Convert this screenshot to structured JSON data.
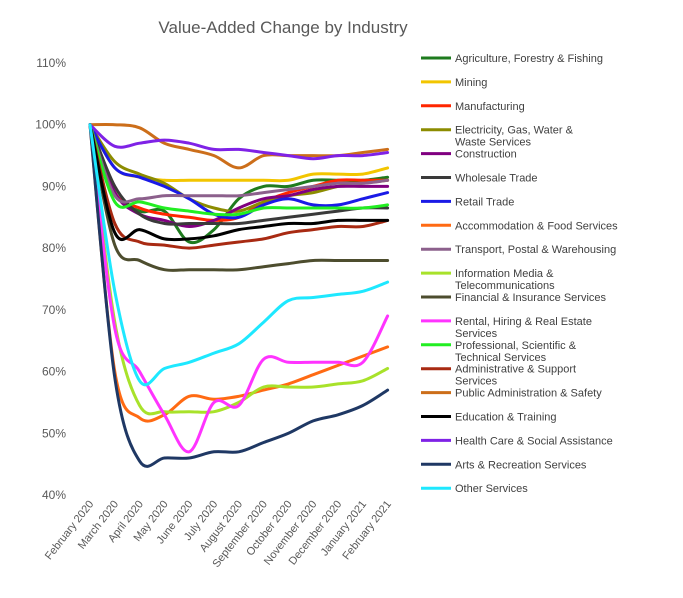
{
  "chart_data": {
    "type": "line",
    "title": "Value-Added Change by Industry",
    "xlabel": "",
    "ylabel": "",
    "ylim": [
      0.4,
      1.1
    ],
    "yticks": [
      "40%",
      "50%",
      "60%",
      "70%",
      "80%",
      "90%",
      "100%",
      "110%"
    ],
    "grid": false,
    "legend": "right",
    "x": [
      "February 2020",
      "March 2020",
      "April 2020",
      "May 2020",
      "June 2020",
      "July 2020",
      "August 2020",
      "September 2020",
      "October 2020",
      "November 2020",
      "December 2020",
      "January 2021",
      "February 2021"
    ],
    "series": [
      {
        "name": "Agriculture, Forestry & Fishing",
        "color": "#1e7b1e",
        "values": [
          1.0,
          0.89,
          0.86,
          0.86,
          0.81,
          0.83,
          0.88,
          0.9,
          0.9,
          0.91,
          0.91,
          0.91,
          0.915
        ]
      },
      {
        "name": "Mining",
        "color": "#f2c500",
        "values": [
          1.0,
          0.93,
          0.915,
          0.91,
          0.91,
          0.91,
          0.91,
          0.91,
          0.91,
          0.92,
          0.92,
          0.92,
          0.93
        ]
      },
      {
        "name": "Manufacturing",
        "color": "#ff2600",
        "values": [
          1.0,
          0.89,
          0.865,
          0.855,
          0.85,
          0.845,
          0.85,
          0.875,
          0.89,
          0.9,
          0.91,
          0.91,
          0.91
        ]
      },
      {
        "name": "Electricity, Gas, Water & Waste Services",
        "color": "#8c8c00",
        "values": [
          1.0,
          0.94,
          0.92,
          0.905,
          0.88,
          0.865,
          0.86,
          0.875,
          0.885,
          0.89,
          0.9,
          0.905,
          0.91
        ]
      },
      {
        "name": "Construction",
        "color": "#800080",
        "values": [
          1.0,
          0.89,
          0.855,
          0.845,
          0.835,
          0.845,
          0.865,
          0.88,
          0.885,
          0.895,
          0.9,
          0.9,
          0.9
        ]
      },
      {
        "name": "Wholesale Trade",
        "color": "#3a3a3a",
        "values": [
          1.0,
          0.9,
          0.855,
          0.84,
          0.84,
          0.84,
          0.84,
          0.845,
          0.85,
          0.855,
          0.86,
          0.865,
          0.865
        ]
      },
      {
        "name": "Retail Trade",
        "color": "#1a1ae6",
        "values": [
          1.0,
          0.93,
          0.915,
          0.9,
          0.88,
          0.855,
          0.85,
          0.87,
          0.88,
          0.87,
          0.87,
          0.88,
          0.89
        ]
      },
      {
        "name": "Accommodation & Food Services",
        "color": "#ff6a13",
        "values": [
          1.0,
          0.6,
          0.525,
          0.53,
          0.56,
          0.555,
          0.56,
          0.57,
          0.58,
          0.595,
          0.61,
          0.625,
          0.64
        ]
      },
      {
        "name": "Transport, Postal & Warehousing",
        "color": "#8c608c",
        "values": [
          1.0,
          0.885,
          0.88,
          0.885,
          0.885,
          0.885,
          0.885,
          0.89,
          0.895,
          0.9,
          0.905,
          0.905,
          0.91
        ]
      },
      {
        "name": "Information Media & Telecommunications",
        "color": "#a8e22a",
        "values": [
          1.0,
          0.68,
          0.545,
          0.535,
          0.535,
          0.535,
          0.55,
          0.575,
          0.575,
          0.575,
          0.58,
          0.585,
          0.605
        ]
      },
      {
        "name": "Financial & Insurance Services",
        "color": "#4d4d2e",
        "values": [
          1.0,
          0.805,
          0.78,
          0.765,
          0.765,
          0.765,
          0.765,
          0.77,
          0.775,
          0.78,
          0.78,
          0.78,
          0.78
        ]
      },
      {
        "name": "Rental, Hiring & Real Estate Services",
        "color": "#ff33ff",
        "values": [
          1.0,
          0.67,
          0.6,
          0.53,
          0.47,
          0.55,
          0.545,
          0.62,
          0.615,
          0.615,
          0.615,
          0.615,
          0.69
        ]
      },
      {
        "name": "Professional, Scientific & Technical Services",
        "color": "#22ee22",
        "values": [
          1.0,
          0.875,
          0.875,
          0.865,
          0.86,
          0.855,
          0.855,
          0.865,
          0.865,
          0.865,
          0.865,
          0.865,
          0.87
        ]
      },
      {
        "name": "Administrative & Support Services",
        "color": "#a82a12",
        "values": [
          1.0,
          0.84,
          0.81,
          0.805,
          0.8,
          0.805,
          0.81,
          0.815,
          0.825,
          0.83,
          0.835,
          0.835,
          0.845
        ]
      },
      {
        "name": "Public Administration & Safety",
        "color": "#cc6e1a",
        "values": [
          1.0,
          1.0,
          0.995,
          0.97,
          0.96,
          0.95,
          0.93,
          0.95,
          0.95,
          0.95,
          0.95,
          0.955,
          0.96
        ]
      },
      {
        "name": "Education & Training",
        "color": "#000000",
        "values": [
          1.0,
          0.825,
          0.83,
          0.815,
          0.815,
          0.82,
          0.83,
          0.835,
          0.84,
          0.84,
          0.845,
          0.845,
          0.845
        ]
      },
      {
        "name": "Health Care & Social Assistance",
        "color": "#7f22e6",
        "values": [
          1.0,
          0.965,
          0.97,
          0.975,
          0.97,
          0.96,
          0.96,
          0.955,
          0.95,
          0.945,
          0.95,
          0.95,
          0.955
        ]
      },
      {
        "name": "Arts & Recreation Services",
        "color": "#1f3864",
        "values": [
          1.0,
          0.59,
          0.455,
          0.46,
          0.46,
          0.47,
          0.47,
          0.485,
          0.5,
          0.52,
          0.53,
          0.545,
          0.57
        ]
      },
      {
        "name": "Other Services",
        "color": "#1ee8ff",
        "values": [
          1.0,
          0.73,
          0.585,
          0.605,
          0.615,
          0.63,
          0.645,
          0.68,
          0.715,
          0.72,
          0.725,
          0.73,
          0.745
        ]
      }
    ]
  }
}
